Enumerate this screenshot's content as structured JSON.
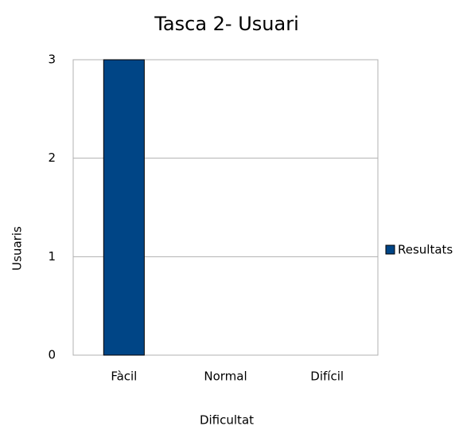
{
  "chart_data": {
    "type": "bar",
    "title": "Tasca 2- Usuari",
    "x_label": "Dificultat",
    "y_label": "Usuaris",
    "categories": [
      "Fàcil",
      "Normal",
      "Difícil"
    ],
    "series": [
      {
        "name": "Resultats",
        "color": "#004586",
        "values": [
          3,
          0,
          0
        ]
      }
    ],
    "ylim": [
      0,
      3
    ],
    "yticks": [
      0,
      1,
      2,
      3
    ],
    "grid": true,
    "legend": "right"
  }
}
